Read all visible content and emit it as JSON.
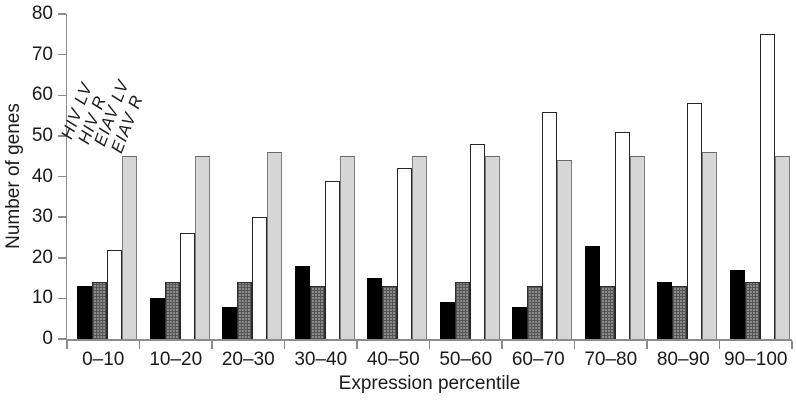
{
  "colors": {
    "background": "#ffffff",
    "text": "#1a1a1a",
    "axis": "#8c8c8c",
    "black": "#000000",
    "checker_base": "#8b8b8b",
    "checker_line": "#555555",
    "checker_border": "#2e2e2e",
    "white": "#ffffff",
    "outline": "#262626",
    "light_gray": "#d6d6d6",
    "light_gray_border": "#7f7f7f",
    "light_gray_border_top": "#6a6a6a"
  },
  "chart_data": {
    "type": "bar",
    "title": "",
    "xlabel": "Expression percentile",
    "ylabel": "Number of genes",
    "ylim": [
      0,
      80
    ],
    "yticks": [
      0,
      10,
      20,
      30,
      40,
      50,
      60,
      70,
      80
    ],
    "grid": false,
    "legend_position": "rotated-italic-labels-above-first-group",
    "categories": [
      "0–10",
      "10–20",
      "20–30",
      "30–40",
      "40–50",
      "50–60",
      "60–70",
      "70–80",
      "80–90",
      "90–100"
    ],
    "series": [
      {
        "key": "hiv-lv",
        "name": "HIV LV",
        "style": "solid-black",
        "values": [
          13,
          10,
          8,
          18,
          15,
          9,
          8,
          23,
          14,
          17
        ]
      },
      {
        "key": "hiv-r",
        "name": "HIV R",
        "style": "checkered-gray",
        "values": [
          14,
          14,
          14,
          13,
          13,
          14,
          13,
          13,
          13,
          14
        ]
      },
      {
        "key": "eiav-lv",
        "name": "EIAV LV",
        "style": "white-outline",
        "values": [
          22,
          26,
          30,
          39,
          42,
          48,
          56,
          51,
          58,
          75
        ]
      },
      {
        "key": "eiav-r",
        "name": "EIAV R",
        "style": "light-gray",
        "values": [
          45,
          45,
          46,
          45,
          45,
          45,
          44,
          45,
          46,
          45
        ]
      }
    ]
  }
}
